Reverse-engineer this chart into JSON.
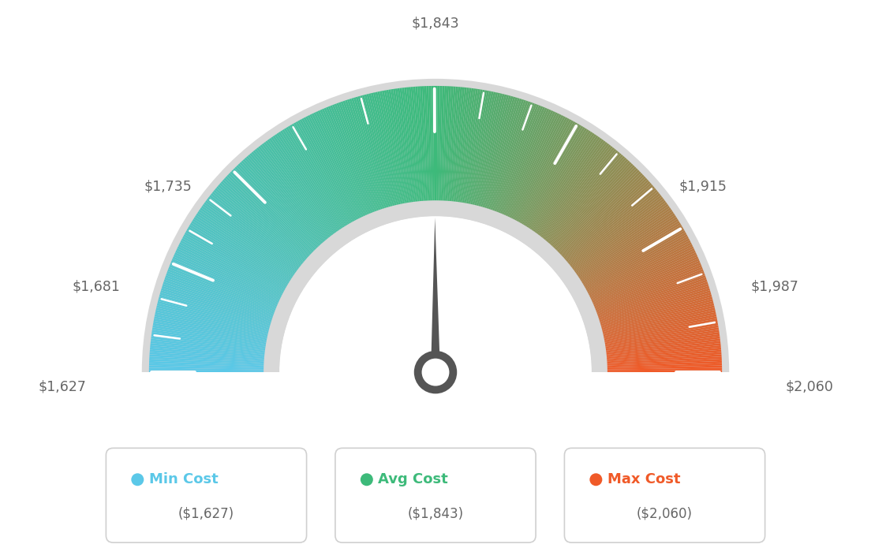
{
  "min_val": 1627,
  "max_val": 2060,
  "avg_val": 1843,
  "needle_value": 1843,
  "labels": {
    "min_cost_label": "Min Cost",
    "avg_cost_label": "Avg Cost",
    "max_cost_label": "Max Cost",
    "min_cost_val": "($1,627)",
    "avg_cost_val": "($1,843)",
    "max_cost_val": "($2,060)"
  },
  "tick_values": [
    1627,
    1681,
    1735,
    1843,
    1915,
    1987,
    2060
  ],
  "tick_labels_map": {
    "1627": "$1,627",
    "1681": "$1,681",
    "1735": "$1,735",
    "1843": "$1,843",
    "1915": "$1,915",
    "1987": "$1,987",
    "2060": "$2,060"
  },
  "color_min": "#5bc8e8",
  "color_mid": "#3dba7a",
  "color_max": "#f05a28",
  "needle_color": "#555555",
  "background": "#ffffff",
  "outer_border_color": "#d8d8d8",
  "inner_arc_color": "#d8d8d8",
  "legend_border_color": "#d0d0d0",
  "label_color": "#666666",
  "value_color": "#666666"
}
